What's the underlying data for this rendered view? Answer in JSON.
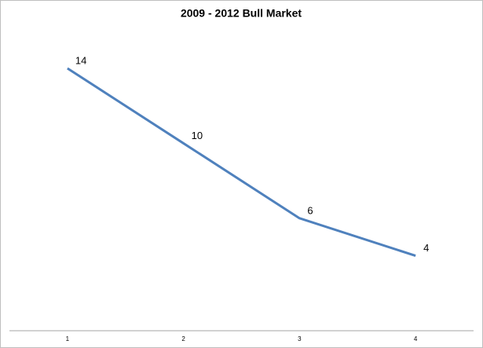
{
  "chart_data": {
    "type": "line",
    "title": "2009 - 2012 Bull Market",
    "categories": [
      "1",
      "2",
      "3",
      "4"
    ],
    "values": [
      14,
      10,
      6,
      4
    ],
    "color": "#4f81bd"
  }
}
